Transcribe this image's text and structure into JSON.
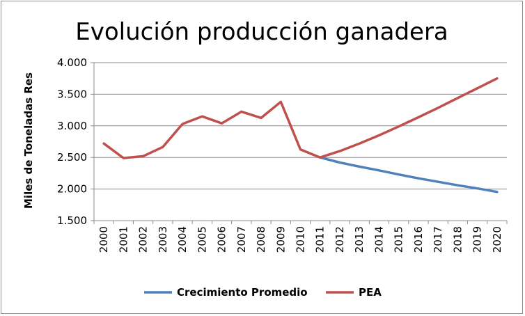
{
  "chart_data": {
    "type": "line",
    "title": "Evolución producción ganadera",
    "xlabel": "",
    "ylabel": "Miles de Toneladas Res",
    "ylim": [
      1500,
      4000
    ],
    "y_ticks": [
      "1.500",
      "2.000",
      "2.500",
      "3.000",
      "3.500",
      "4.000"
    ],
    "y_tick_values": [
      1500,
      2000,
      2500,
      3000,
      3500,
      4000
    ],
    "categories": [
      "2000",
      "2001",
      "2002",
      "2003",
      "2004",
      "2005",
      "2006",
      "2007",
      "2008",
      "2009",
      "2010",
      "2011",
      "2012",
      "2013",
      "2014",
      "2015",
      "2016",
      "2017",
      "2018",
      "2019",
      "2020"
    ],
    "grid": "horizontal",
    "legend_position": "bottom",
    "series": [
      {
        "name": "Crecimiento Promedio",
        "color": "#4f81bd",
        "values": [
          null,
          null,
          null,
          null,
          null,
          null,
          null,
          null,
          null,
          null,
          null,
          2500,
          2420,
          2355,
          2295,
          2230,
          2170,
          2115,
          2060,
          2010,
          1955
        ]
      },
      {
        "name": "PEA",
        "color": "#c0504d",
        "values": [
          2720,
          2490,
          2520,
          2665,
          3030,
          3150,
          3040,
          3225,
          3125,
          3380,
          2625,
          2500,
          2600,
          2720,
          2850,
          2990,
          3135,
          3285,
          3440,
          3595,
          3750
        ]
      }
    ]
  }
}
